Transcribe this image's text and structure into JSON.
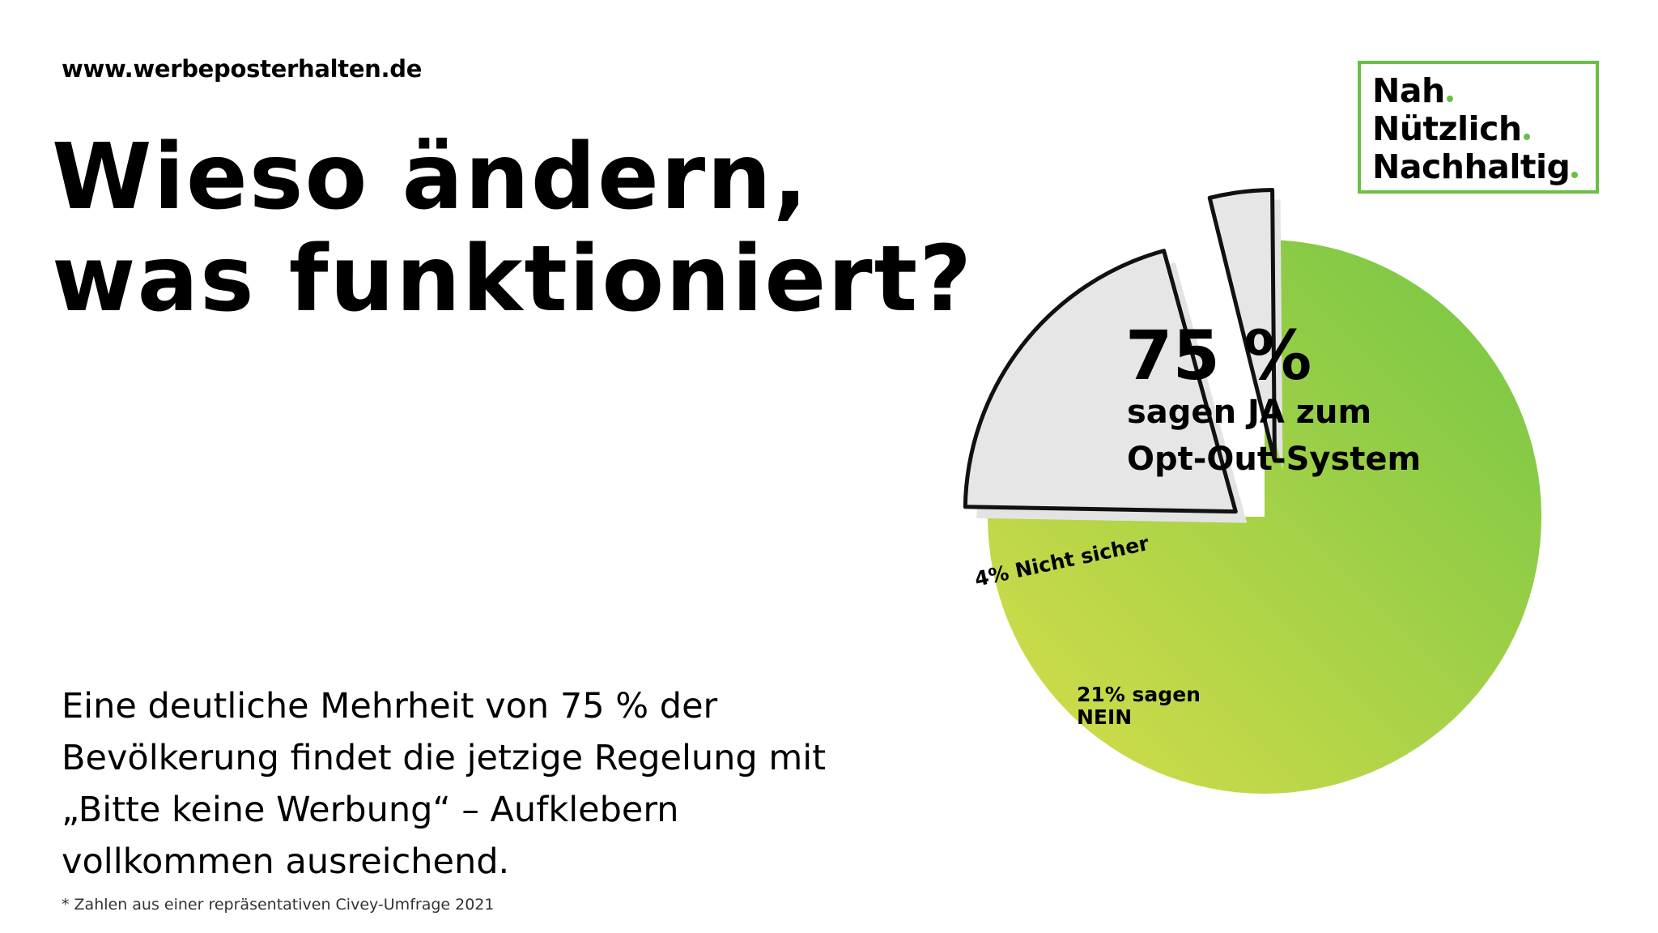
{
  "header": {
    "url": "www.werbeposterhalten.de",
    "headline_line1": "Wieso ändern,",
    "headline_line2": "was funktioniert?"
  },
  "brand": {
    "line1": "Nah",
    "line2": "Nützlich",
    "line3": "Nachhaltig",
    "accent_color": "#6abf45"
  },
  "body": {
    "text": "Eine deutliche Mehrheit von 75 % der Bevölkerung findet die jetzige Regelung mit „Bitte keine Werbung“ – Aufklebern vollkommen ausreichend.",
    "footnote": "* Zahlen aus einer repräsentativen Civey-Umfrage 2021"
  },
  "chart_data": {
    "type": "pie",
    "slices": [
      {
        "value": 75,
        "unit": "%",
        "label_big": "75 %",
        "label_line1": "sagen JA zum",
        "label_line2": "Opt-Out-System",
        "color_start": "#d9de4a",
        "color_end": "#72c545"
      },
      {
        "value": 21,
        "label_line1": "21% sagen",
        "label_line2": "NEIN",
        "color": "#e6e6e6"
      },
      {
        "value": 4,
        "label_line1": "4% Nicht sicher",
        "color": "#e6e6e6"
      }
    ]
  }
}
